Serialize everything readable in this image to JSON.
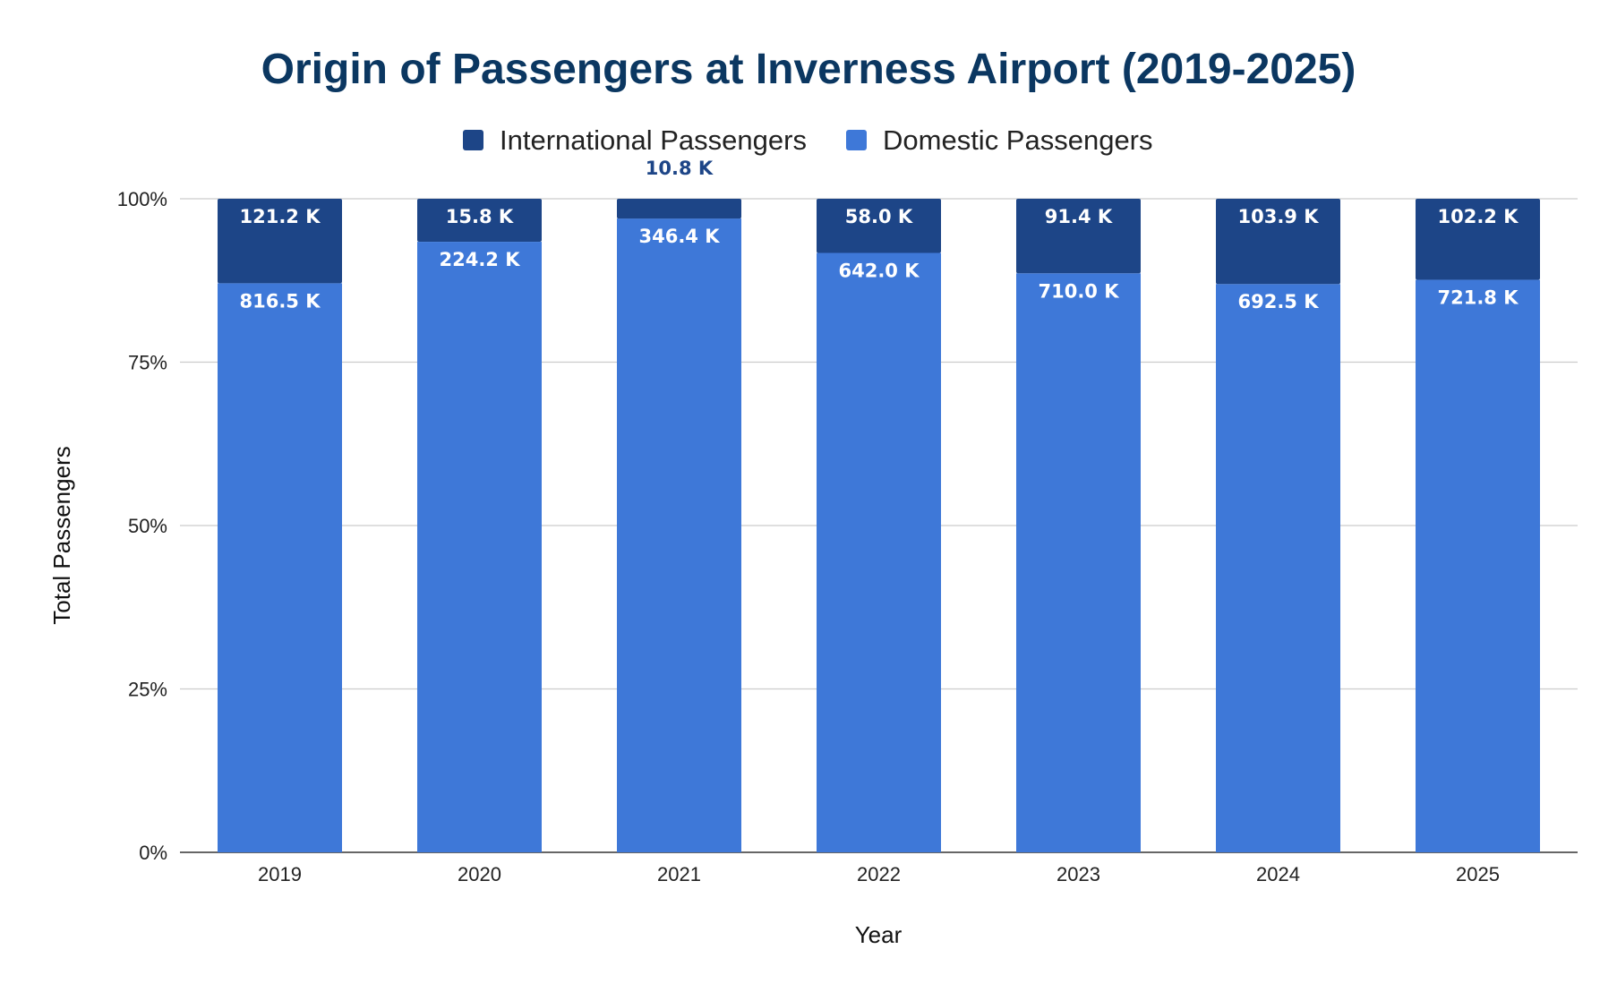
{
  "chart_data": {
    "type": "bar",
    "stacked": "percent",
    "title": "Origin of Passengers at Inverness Airport (2019-2025)",
    "xlabel": "Year",
    "ylabel": "Total Passengers",
    "categories": [
      "2019",
      "2020",
      "2021",
      "2022",
      "2023",
      "2024",
      "2025"
    ],
    "series": [
      {
        "name": "Domestic Passengers",
        "color": "#3e78d8",
        "values": [
          816.5,
          224.2,
          346.4,
          642.0,
          710.0,
          692.5,
          721.8
        ],
        "labels": [
          "816.5 K",
          "224.2 K",
          "346.4 K",
          "642.0 K",
          "710.0 K",
          "692.5 K",
          "721.8 K"
        ]
      },
      {
        "name": "International Passengers",
        "color": "#1d4587",
        "values": [
          121.2,
          15.8,
          10.8,
          58.0,
          91.4,
          103.9,
          102.2
        ],
        "labels": [
          "121.2 K",
          "15.8 K",
          "10.8 K",
          "58.0 K",
          "91.4 K",
          "103.9 K",
          "102.2 K"
        ]
      }
    ],
    "legend": {
      "position": "top",
      "order": [
        "International Passengers",
        "Domestic Passengers"
      ]
    },
    "yticks": [
      "0%",
      "25%",
      "50%",
      "75%",
      "100%"
    ],
    "ylim": [
      0,
      100
    ],
    "grid": true
  }
}
